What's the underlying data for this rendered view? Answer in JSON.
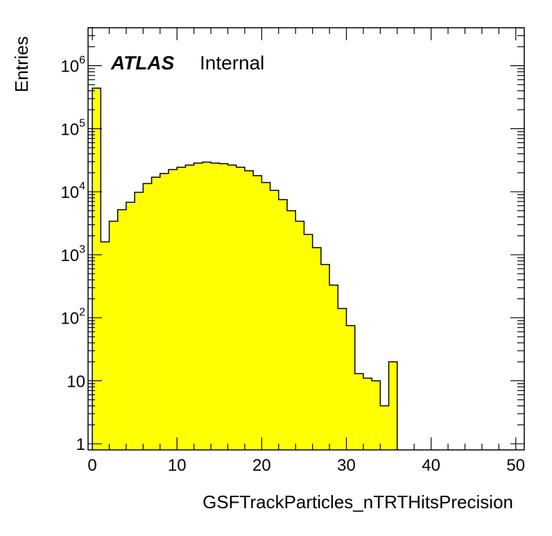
{
  "chart_data": {
    "type": "bar",
    "histogram": true,
    "bin_width": 1,
    "x_bin_edges_start": 0,
    "values": [
      440000,
      1600,
      3400,
      5200,
      6800,
      9800,
      13500,
      17000,
      19500,
      22500,
      24500,
      26500,
      28500,
      29500,
      28500,
      28000,
      26500,
      24500,
      21500,
      18000,
      14000,
      10500,
      7500,
      5000,
      3400,
      2100,
      1300,
      700,
      330,
      140,
      75,
      13,
      11,
      10,
      4,
      20
    ],
    "xlabel": "GSFTrackParticles_nTRTHitsPrecision",
    "ylabel": "Entries",
    "xlim": [
      -0.5,
      51
    ],
    "ylim": [
      0.8,
      4000000
    ],
    "log_y": true,
    "x_ticks": [
      "0",
      "10",
      "20",
      "30",
      "40",
      "50"
    ],
    "x_tick_values": [
      0,
      10,
      20,
      30,
      40,
      50
    ],
    "y_ticks": [
      {
        "value": 1,
        "base": "1",
        "exp": ""
      },
      {
        "value": 10,
        "base": "10",
        "exp": ""
      },
      {
        "value": 100,
        "base": "10",
        "exp": "2"
      },
      {
        "value": 1000,
        "base": "10",
        "exp": "3"
      },
      {
        "value": 10000,
        "base": "10",
        "exp": "4"
      },
      {
        "value": 100000,
        "base": "10",
        "exp": "5"
      },
      {
        "value": 1000000,
        "base": "10",
        "exp": "6"
      }
    ],
    "fill_color": "#ffff00",
    "line_color": "#000000",
    "grid": false,
    "legend": "none"
  },
  "label": {
    "atlas": "ATLAS",
    "status": "Internal"
  }
}
